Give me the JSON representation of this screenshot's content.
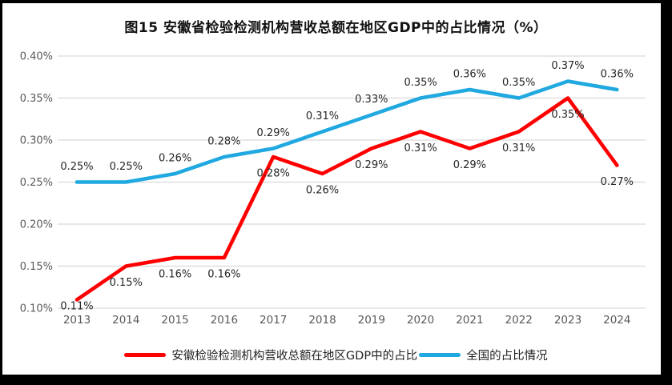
{
  "title": "图15  安徽省检验检测机构营收总额在地区GDP中的占比情况（%）",
  "chart_data": {
    "type": "line",
    "title": "图15  安徽省检验检测机构营收总额在地区GDP中的占比情况（%）",
    "categories": [
      "2013",
      "2014",
      "2015",
      "2016",
      "2017",
      "2018",
      "2019",
      "2020",
      "2021",
      "2022",
      "2023",
      "2024"
    ],
    "series": [
      {
        "name": "安徽检验检测机构营收总额在地区GDP中的占比",
        "color": "#FF0000",
        "values": [
          0.11,
          0.15,
          0.16,
          0.16,
          0.28,
          0.26,
          0.29,
          0.31,
          0.29,
          0.31,
          0.35,
          0.27
        ],
        "labels": [
          "0.11%",
          "0.15%",
          "0.16%",
          "0.16%",
          "0.28%",
          "0.26%",
          "0.29%",
          "0.31%",
          "0.29%",
          "0.31%",
          "0.35%",
          "0.27%"
        ],
        "label_position": "below"
      },
      {
        "name": "全国的占比情况",
        "color": "#20A9E0",
        "values": [
          0.25,
          0.25,
          0.26,
          0.28,
          0.29,
          0.31,
          0.33,
          0.35,
          0.36,
          0.35,
          0.37,
          0.36
        ],
        "labels": [
          "0.25%",
          "0.25%",
          "0.26%",
          "0.28%",
          "0.29%",
          "0.31%",
          "0.33%",
          "0.35%",
          "0.36%",
          "0.35%",
          "0.37%",
          "0.36%"
        ],
        "label_position": "above"
      }
    ],
    "xlabel": "",
    "ylabel": "",
    "ylim": [
      0.1,
      0.4
    ],
    "y_axis": {
      "min": 0.1,
      "max": 0.4,
      "step": 0.05,
      "tick_labels": [
        "0.10%",
        "0.15%",
        "0.20%",
        "0.25%",
        "0.30%",
        "0.35%",
        "0.40%"
      ]
    },
    "grid": true,
    "legend_position": "bottom"
  },
  "colors": {
    "grid_line": "#D9D9D9",
    "axis_text": "#595959",
    "data_label": "#262626",
    "frame": "#000000",
    "background": "#FFFFFF"
  }
}
